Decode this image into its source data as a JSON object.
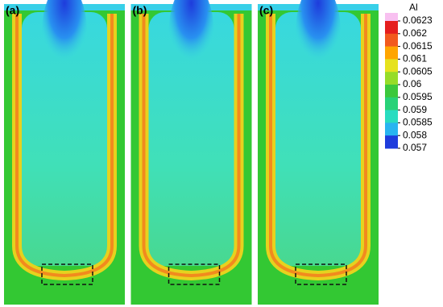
{
  "panels": [
    {
      "label": "(a)"
    },
    {
      "label": "(b)"
    },
    {
      "label": "(c)"
    }
  ],
  "colorbar": {
    "title": "Al",
    "ticks": [
      0.0623,
      0.062,
      0.0615,
      0.061,
      0.0605,
      0.06,
      0.0595,
      0.059,
      0.0585,
      0.058,
      0.057
    ],
    "colors": [
      "#e51e1e",
      "#f25a1e",
      "#ffa500",
      "#e6e21e",
      "#96dc28",
      "#3cc83c",
      "#28d278",
      "#28dcc0",
      "#28b4f0",
      "#1e3cdc"
    ]
  }
}
